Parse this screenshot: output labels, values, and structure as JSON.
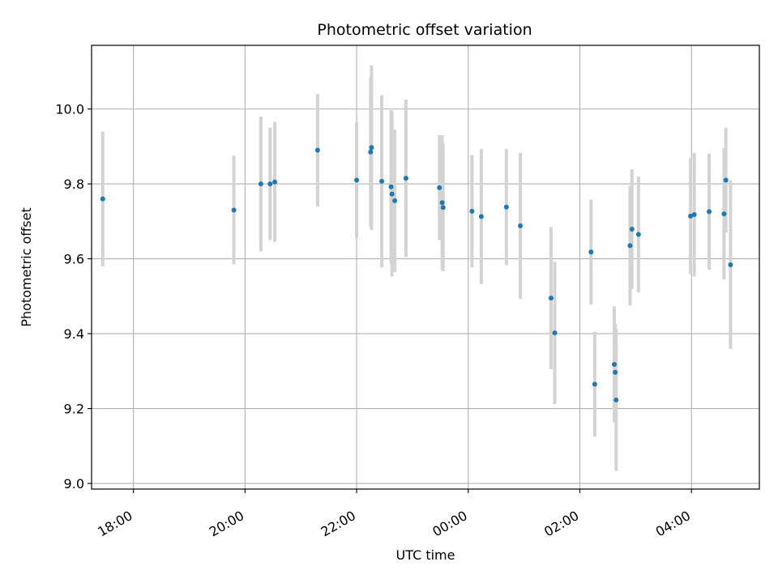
{
  "chart_data": {
    "type": "scatter",
    "title": "Photometric offset variation",
    "xlabel": "UTC time",
    "ylabel": "Photometric offset",
    "grid": true,
    "x_ticks": [
      "18:00",
      "20:00",
      "22:00",
      "00:00",
      "02:00",
      "04:00"
    ],
    "y_ticks": [
      "9.0",
      "9.2",
      "9.4",
      "9.6",
      "9.8",
      "10.0"
    ],
    "xlim": [
      "17:15",
      "05:13"
    ],
    "ylim": [
      8.985,
      10.17
    ],
    "colors": {
      "point": "#1f77b4",
      "errorbar": "#d3d3d3",
      "grid": "#b0b0b0"
    },
    "series": [
      {
        "points": [
          {
            "x": "17:27",
            "y": 9.76,
            "err": 0.18
          },
          {
            "x": "19:48",
            "y": 9.73,
            "err": 0.145
          },
          {
            "x": "20:17",
            "y": 9.8,
            "err": 0.18
          },
          {
            "x": "20:27",
            "y": 9.8,
            "err": 0.15
          },
          {
            "x": "20:32",
            "y": 9.805,
            "err": 0.16
          },
          {
            "x": "21:18",
            "y": 9.89,
            "err": 0.15
          },
          {
            "x": "22:00",
            "y": 9.81,
            "err": 0.155
          },
          {
            "x": "22:15",
            "y": 9.885,
            "err": 0.2
          },
          {
            "x": "22:16",
            "y": 9.897,
            "err": 0.22
          },
          {
            "x": "22:27",
            "y": 9.807,
            "err": 0.23
          },
          {
            "x": "22:37",
            "y": 9.792,
            "err": 0.205
          },
          {
            "x": "22:38",
            "y": 9.773,
            "err": 0.22
          },
          {
            "x": "22:41",
            "y": 9.755,
            "err": 0.19
          },
          {
            "x": "22:53",
            "y": 9.815,
            "err": 0.21
          },
          {
            "x": "23:29",
            "y": 9.79,
            "err": 0.14
          },
          {
            "x": "23:32",
            "y": 9.75,
            "err": 0.18
          },
          {
            "x": "23:33",
            "y": 9.737,
            "err": 0.17
          },
          {
            "x": "00:04",
            "y": 9.727,
            "err": 0.15
          },
          {
            "x": "00:14",
            "y": 9.713,
            "err": 0.18
          },
          {
            "x": "00:41",
            "y": 9.738,
            "err": 0.155
          },
          {
            "x": "00:56",
            "y": 9.688,
            "err": 0.195
          },
          {
            "x": "01:29",
            "y": 9.495,
            "err": 0.19
          },
          {
            "x": "01:33",
            "y": 9.402,
            "err": 0.19
          },
          {
            "x": "02:12",
            "y": 9.618,
            "err": 0.14
          },
          {
            "x": "02:16",
            "y": 9.265,
            "err": 0.14
          },
          {
            "x": "02:37",
            "y": 9.318,
            "err": 0.155
          },
          {
            "x": "02:38",
            "y": 9.297,
            "err": 0.13
          },
          {
            "x": "02:39",
            "y": 9.223,
            "err": 0.19
          },
          {
            "x": "02:54",
            "y": 9.635,
            "err": 0.16
          },
          {
            "x": "02:56",
            "y": 9.679,
            "err": 0.16
          },
          {
            "x": "03:03",
            "y": 9.665,
            "err": 0.155
          },
          {
            "x": "03:59",
            "y": 9.714,
            "err": 0.155
          },
          {
            "x": "04:03",
            "y": 9.718,
            "err": 0.165
          },
          {
            "x": "04:19",
            "y": 9.726,
            "err": 0.155
          },
          {
            "x": "04:35",
            "y": 9.72,
            "err": 0.175
          },
          {
            "x": "04:37",
            "y": 9.81,
            "err": 0.14
          },
          {
            "x": "04:42",
            "y": 9.584,
            "err": 0.225
          }
        ]
      }
    ]
  }
}
